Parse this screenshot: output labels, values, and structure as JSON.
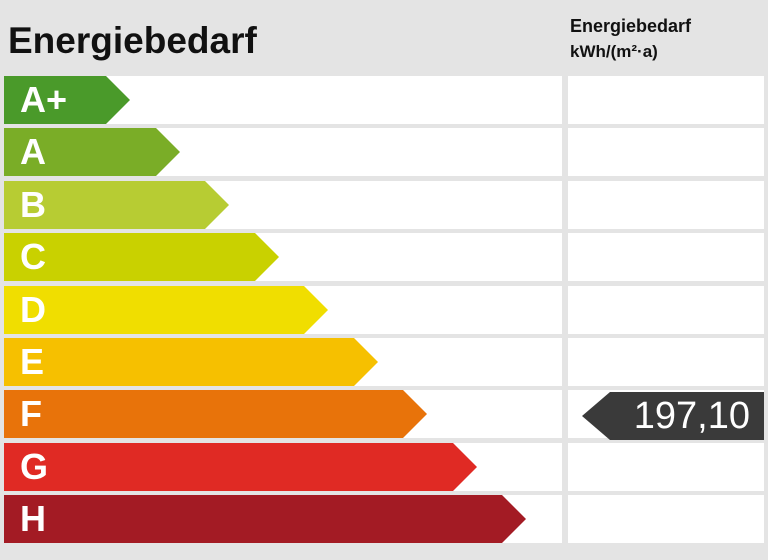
{
  "chart_data": {
    "type": "bar",
    "title": "Energiebedarf",
    "column_header": [
      "Energiebedarf",
      "kWh/(m²·a)"
    ],
    "categories": [
      "A+",
      "A",
      "B",
      "C",
      "D",
      "E",
      "F",
      "G",
      "H"
    ],
    "series": [
      {
        "values": [
          1,
          2,
          3,
          4,
          5,
          6,
          7,
          8,
          9
        ],
        "colors": [
          "#4a9a2a",
          "#7aad27",
          "#b7cc33",
          "#c9d100",
          "#f0de00",
          "#f6c000",
          "#e8730a",
          "#e02a24",
          "#a31b24"
        ]
      }
    ],
    "marker": {
      "category": "F",
      "value": "197,10"
    }
  }
}
